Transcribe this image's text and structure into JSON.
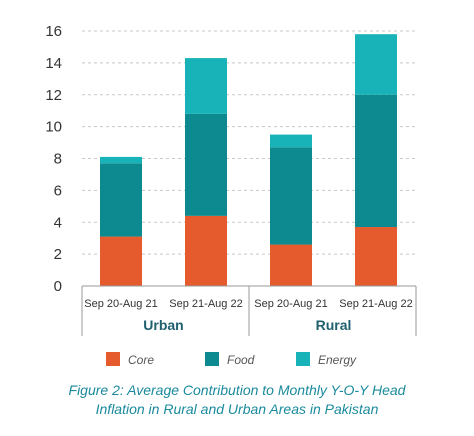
{
  "chart_data": {
    "type": "bar",
    "stacked": true,
    "categories": [
      "Sep 20-Aug 21",
      "Sep 21-Aug 22",
      "Sep 20-Aug 21",
      "Sep 21-Aug 22"
    ],
    "groups": [
      {
        "name": "Urban",
        "categories": [
          0,
          1
        ]
      },
      {
        "name": "Rural",
        "categories": [
          2,
          3
        ]
      }
    ],
    "series": [
      {
        "name": "Core",
        "color": "#e55b2d",
        "values": [
          3.1,
          4.4,
          2.6,
          3.7
        ]
      },
      {
        "name": "Food",
        "color": "#0d8a8f",
        "values": [
          4.6,
          6.4,
          6.1,
          8.3
        ]
      },
      {
        "name": "Energy",
        "color": "#18b3b8",
        "values": [
          0.4,
          3.5,
          0.8,
          3.8
        ]
      }
    ],
    "ylim": [
      0,
      16
    ],
    "yticks": [
      0,
      2,
      4,
      6,
      8,
      10,
      12,
      14,
      16
    ],
    "grid": "horizontal dashed",
    "legend": "bottom"
  },
  "caption": {
    "line1": "Figure 2: Average Contribution to Monthly Y-O-Y Head",
    "line2": "Inflation in Rural and Urban Areas in Pakistan"
  }
}
